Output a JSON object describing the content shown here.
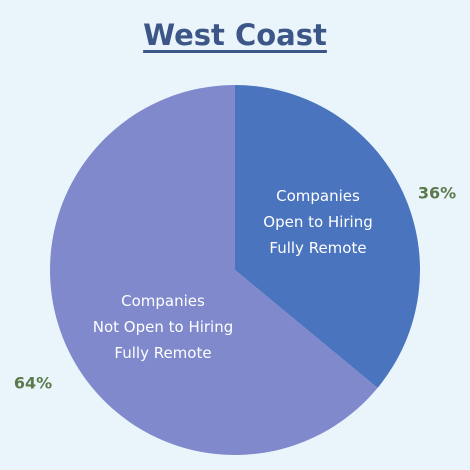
{
  "chart_data": {
    "type": "pie",
    "title": "West Coast",
    "categories": [
      "Companies\nOpen to Hiring\nFully Remote",
      "Companies\nNot Open to Hiring\nFully Remote"
    ],
    "values": [
      36,
      64
    ],
    "value_labels": [
      "36%",
      "64%"
    ],
    "colors": [
      "#4a74bd",
      "#7f89cc"
    ]
  }
}
